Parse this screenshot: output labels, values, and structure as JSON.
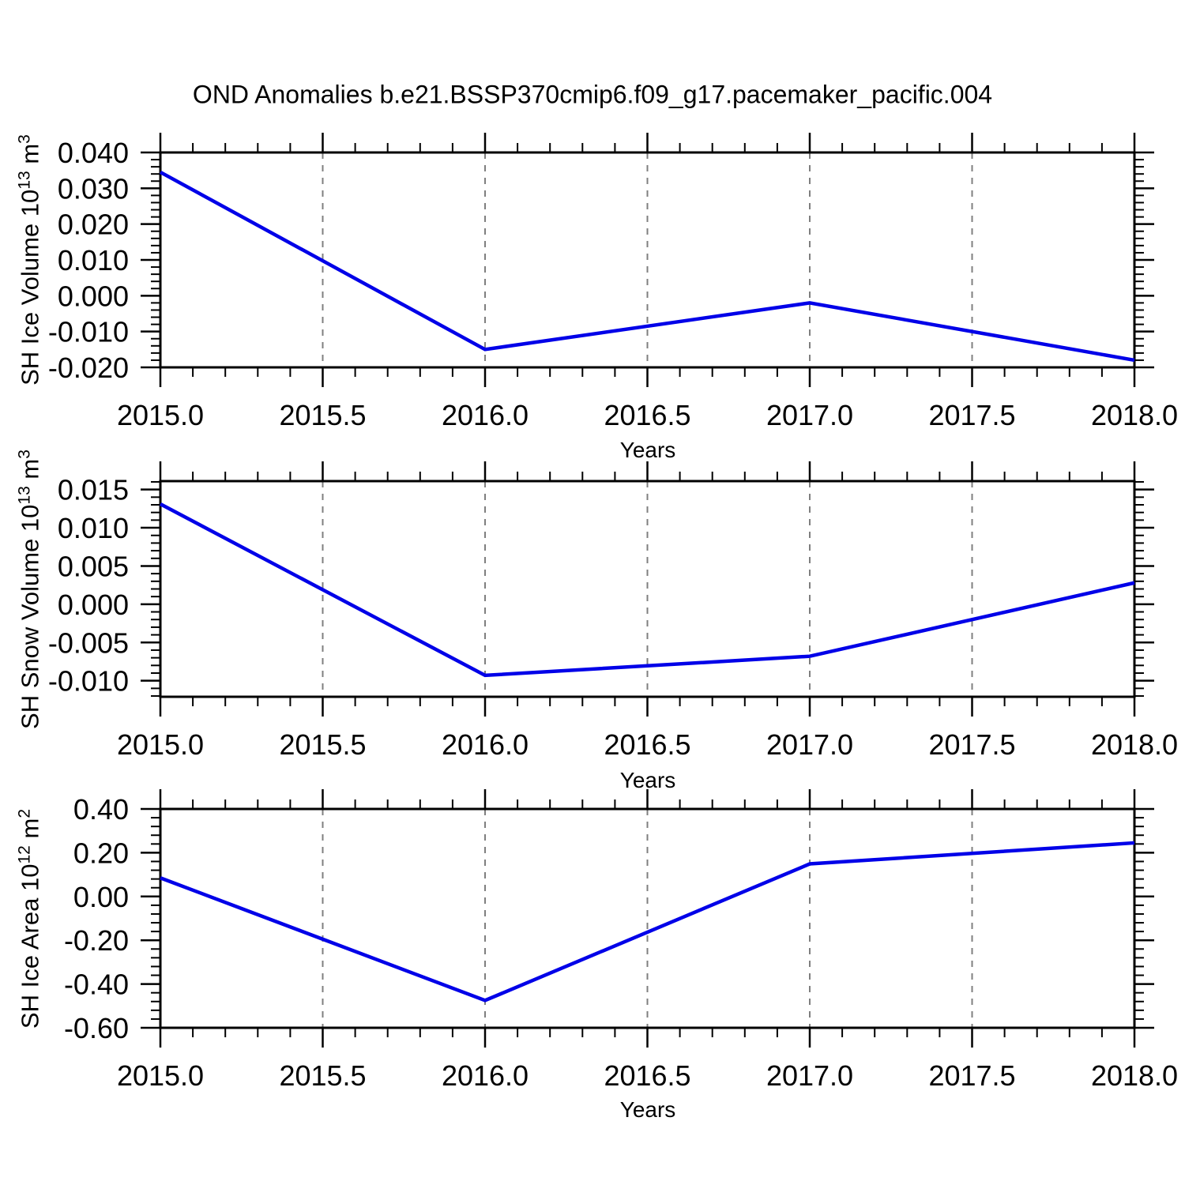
{
  "figure": {
    "title": "OND Anomalies b.e21.BSSP370cmip6.f09_g17.pacemaker_pacific.004",
    "background_color": "#ffffff",
    "frame_color": "#000000",
    "grid_color": "#7f7f7f",
    "line_color": "#0000e8"
  },
  "chart_data": [
    {
      "type": "line",
      "panel": "SH Ice Volume",
      "x": [
        2015,
        2016,
        2017,
        2018
      ],
      "series": [
        {
          "name": "SH Ice Volume anomaly",
          "values": [
            0.0345,
            -0.015,
            -0.002,
            -0.018
          ]
        }
      ],
      "xlabel": "Years",
      "ylabel": {
        "base": "SH Ice Volume 10",
        "exp": "13",
        "unit": " m",
        "unit_exp": "3"
      },
      "xlim": [
        2015.0,
        2018.0
      ],
      "ylim": [
        -0.02,
        0.04
      ],
      "xticks": {
        "values": [
          2015.0,
          2015.5,
          2016.0,
          2016.5,
          2017.0,
          2017.5,
          2018.0
        ],
        "labels": [
          "2015.0",
          "2015.5",
          "2016.0",
          "2016.5",
          "2017.0",
          "2017.5",
          "2018.0"
        ],
        "minor_step": 0.1
      },
      "yticks": {
        "values": [
          0.04,
          0.03,
          0.02,
          0.01,
          0.0,
          -0.01,
          -0.02
        ],
        "labels": [
          "0.040",
          "0.030",
          "0.020",
          "0.010",
          "0.000",
          "-0.010",
          "-0.020"
        ],
        "minor_step": 0.002
      },
      "grid_x": [
        2015.5,
        2016.0,
        2016.5,
        2017.0,
        2017.5
      ],
      "grid_on": true,
      "legend": "none"
    },
    {
      "type": "line",
      "panel": "SH Snow Volume",
      "x": [
        2015,
        2016,
        2017,
        2018
      ],
      "series": [
        {
          "name": "SH Snow Volume anomaly",
          "values": [
            0.0131,
            -0.0093,
            -0.0068,
            0.0028
          ]
        }
      ],
      "xlabel": "Years",
      "ylabel": {
        "base": "SH Snow Volume 10",
        "exp": "13",
        "unit": " m",
        "unit_exp": "3"
      },
      "xlim": [
        2015.0,
        2018.0
      ],
      "ylim": [
        -0.0121,
        0.0161
      ],
      "xticks": {
        "values": [
          2015.0,
          2015.5,
          2016.0,
          2016.5,
          2017.0,
          2017.5,
          2018.0
        ],
        "labels": [
          "2015.0",
          "2015.5",
          "2016.0",
          "2016.5",
          "2017.0",
          "2017.5",
          "2018.0"
        ],
        "minor_step": 0.1
      },
      "yticks": {
        "values": [
          0.015,
          0.01,
          0.005,
          0.0,
          -0.005,
          -0.01
        ],
        "labels": [
          "0.015",
          "0.010",
          "0.005",
          "0.000",
          "-0.005",
          "-0.010"
        ],
        "minor_step": 0.001
      },
      "grid_x": [
        2015.5,
        2016.0,
        2016.5,
        2017.0,
        2017.5
      ],
      "grid_on": true,
      "legend": "none"
    },
    {
      "type": "line",
      "panel": "SH Ice Area",
      "x": [
        2015,
        2016,
        2017,
        2018
      ],
      "series": [
        {
          "name": "SH Ice Area anomaly",
          "values": [
            0.085,
            -0.475,
            0.149,
            0.245
          ]
        }
      ],
      "xlabel": "Years",
      "ylabel": {
        "base": "SH Ice Area 10",
        "exp": "12",
        "unit": " m",
        "unit_exp": "2"
      },
      "xlim": [
        2015.0,
        2018.0
      ],
      "ylim": [
        -0.6,
        0.4
      ],
      "xticks": {
        "values": [
          2015.0,
          2015.5,
          2016.0,
          2016.5,
          2017.0,
          2017.5,
          2018.0
        ],
        "labels": [
          "2015.0",
          "2015.5",
          "2016.0",
          "2016.5",
          "2017.0",
          "2017.5",
          "2018.0"
        ],
        "minor_step": 0.1
      },
      "yticks": {
        "values": [
          0.4,
          0.2,
          0.0,
          -0.2,
          -0.4,
          -0.6
        ],
        "labels": [
          "0.40",
          "0.20",
          "0.00",
          "-0.20",
          "-0.40",
          "-0.60"
        ],
        "minor_step": 0.04
      },
      "grid_x": [
        2015.5,
        2016.0,
        2016.5,
        2017.0,
        2017.5
      ],
      "grid_on": true,
      "legend": "none"
    }
  ]
}
